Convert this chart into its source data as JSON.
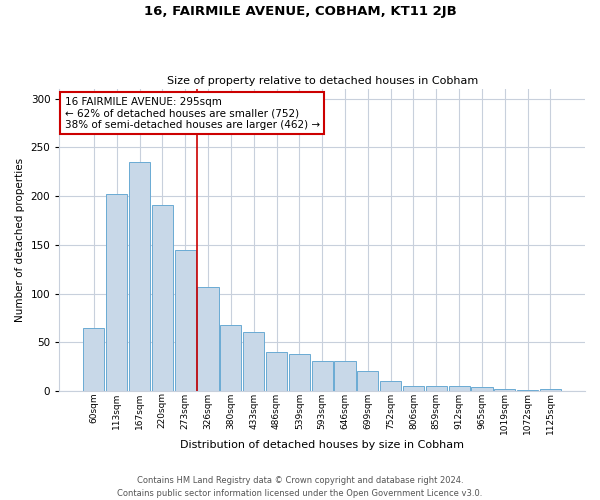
{
  "title": "16, FAIRMILE AVENUE, COBHAM, KT11 2JB",
  "subtitle": "Size of property relative to detached houses in Cobham",
  "xlabel": "Distribution of detached houses by size in Cobham",
  "ylabel": "Number of detached properties",
  "bar_labels": [
    "60sqm",
    "113sqm",
    "167sqm",
    "220sqm",
    "273sqm",
    "326sqm",
    "380sqm",
    "433sqm",
    "486sqm",
    "539sqm",
    "593sqm",
    "646sqm",
    "699sqm",
    "752sqm",
    "806sqm",
    "859sqm",
    "912sqm",
    "965sqm",
    "1019sqm",
    "1072sqm",
    "1125sqm"
  ],
  "bar_values": [
    65,
    202,
    235,
    191,
    145,
    107,
    68,
    61,
    40,
    38,
    31,
    31,
    20,
    10,
    5,
    5,
    5,
    4,
    2,
    1,
    2
  ],
  "bar_color": "#c8d8e8",
  "bar_edge_color": "#6aaad4",
  "ylim": [
    0,
    310
  ],
  "yticks": [
    0,
    50,
    100,
    150,
    200,
    250,
    300
  ],
  "vline_x": 4.5,
  "vline_color": "#cc0000",
  "annotation_title": "16 FAIRMILE AVENUE: 295sqm",
  "annotation_line1": "← 62% of detached houses are smaller (752)",
  "annotation_line2": "38% of semi-detached houses are larger (462) →",
  "annotation_box_color": "#cc0000",
  "footer_line1": "Contains HM Land Registry data © Crown copyright and database right 2024.",
  "footer_line2": "Contains public sector information licensed under the Open Government Licence v3.0.",
  "background_color": "#ffffff",
  "grid_color": "#c8d0dc"
}
